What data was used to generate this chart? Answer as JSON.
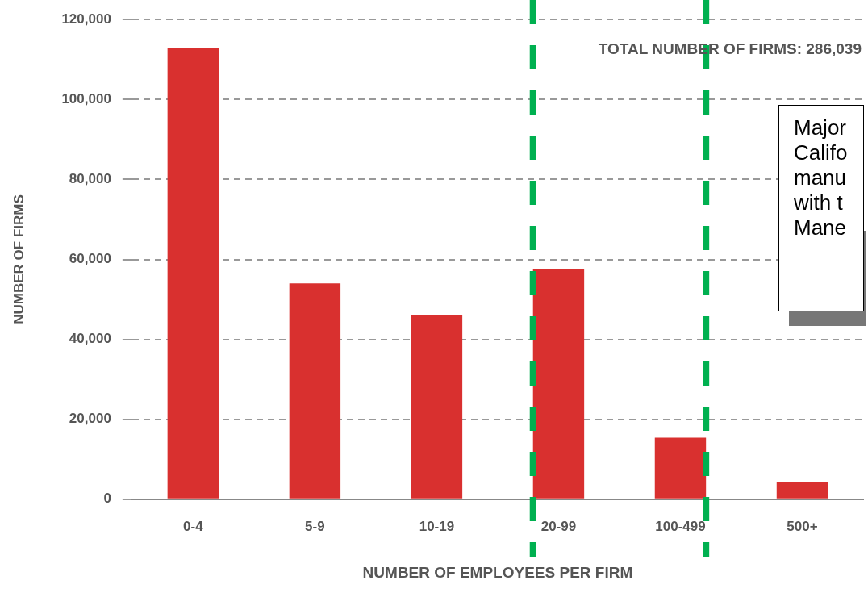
{
  "chart_data": {
    "type": "bar",
    "xlabel": "NUMBER OF EMPLOYEES PER FIRM",
    "ylabel": "NUMBER OF FIRMS",
    "categories": [
      "0-4",
      "5-9",
      "10-19",
      "20-99",
      "100-499",
      "500+"
    ],
    "values": [
      113000,
      54000,
      46000,
      57500,
      15400,
      4200
    ],
    "color": "#d9302f",
    "ylim": [
      0,
      120000
    ],
    "yticks": [
      0,
      {
        "value": 20000,
        "label": "20,000"
      },
      {
        "value": 40000,
        "label": "40,000"
      },
      {
        "value": 60000,
        "label": "60,000"
      },
      {
        "value": 80000,
        "label": "80,000"
      },
      {
        "value": 100000,
        "label": "100,000"
      },
      {
        "value": 120000,
        "label": "120,000"
      }
    ],
    "grid": "y",
    "ref_lines": [
      {
        "axis": "x",
        "value": "20-99",
        "color": "#00b050",
        "line_style": "dashed"
      },
      {
        "axis": "x",
        "value": "100-499",
        "color": "#00b050",
        "line_style": "dashed"
      }
    ],
    "annotations": [
      "TOTAL NUMBER OF FIRMS: 286,039",
      "Major\nCalifo\nmanu\nwith t\nMane"
    ]
  }
}
